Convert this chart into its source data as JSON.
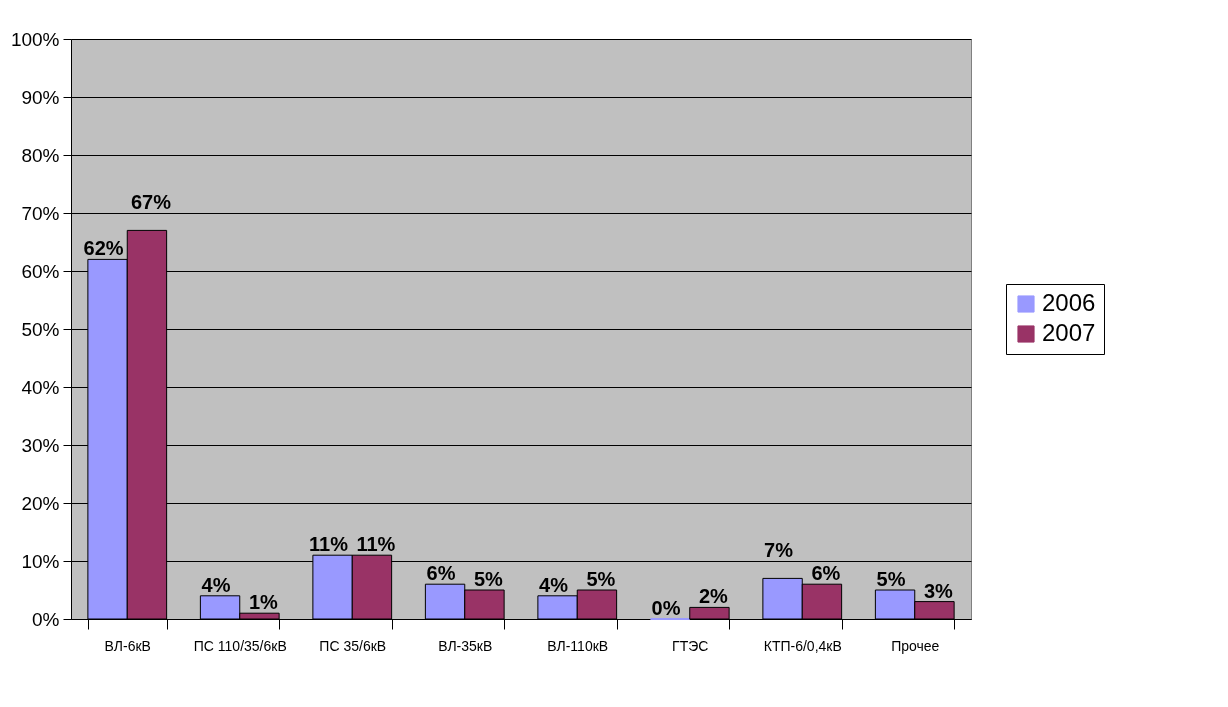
{
  "chart_data": {
    "type": "bar",
    "categories": [
      "ВЛ-6кВ",
      "ПС 110/35/6кВ",
      "ПС 35/6кВ",
      "ВЛ-35кВ",
      "ВЛ-110кВ",
      "ГТЭС",
      "КТП-6/0,4кВ",
      "Прочее"
    ],
    "series": [
      {
        "name": "2006",
        "color": "#9999ff",
        "values": [
          62,
          4,
          11,
          6,
          4,
          0,
          7,
          5
        ],
        "value_labels": [
          "62%",
          "4%",
          "11%",
          "6%",
          "4%",
          "0%",
          "7%",
          "5%"
        ]
      },
      {
        "name": "2007",
        "color": "#993366",
        "values": [
          67,
          1,
          11,
          5,
          5,
          2,
          6,
          3
        ],
        "value_labels": [
          "67%",
          "1%",
          "11%",
          "5%",
          "5%",
          "2%",
          "6%",
          "3%"
        ]
      }
    ],
    "ylim": [
      0,
      100
    ],
    "yticks": [
      {
        "value": 0,
        "label": "0%"
      },
      {
        "value": 10,
        "label": "10%"
      },
      {
        "value": 20,
        "label": "20%"
      },
      {
        "value": 30,
        "label": "30%"
      },
      {
        "value": 40,
        "label": "40%"
      },
      {
        "value": 50,
        "label": "50%"
      },
      {
        "value": 60,
        "label": "60%"
      },
      {
        "value": 70,
        "label": "70%"
      },
      {
        "value": 80,
        "label": "80%"
      },
      {
        "value": 90,
        "label": "90%"
      },
      {
        "value": 100,
        "label": "100%"
      }
    ],
    "grid": "y",
    "legend": "right"
  }
}
